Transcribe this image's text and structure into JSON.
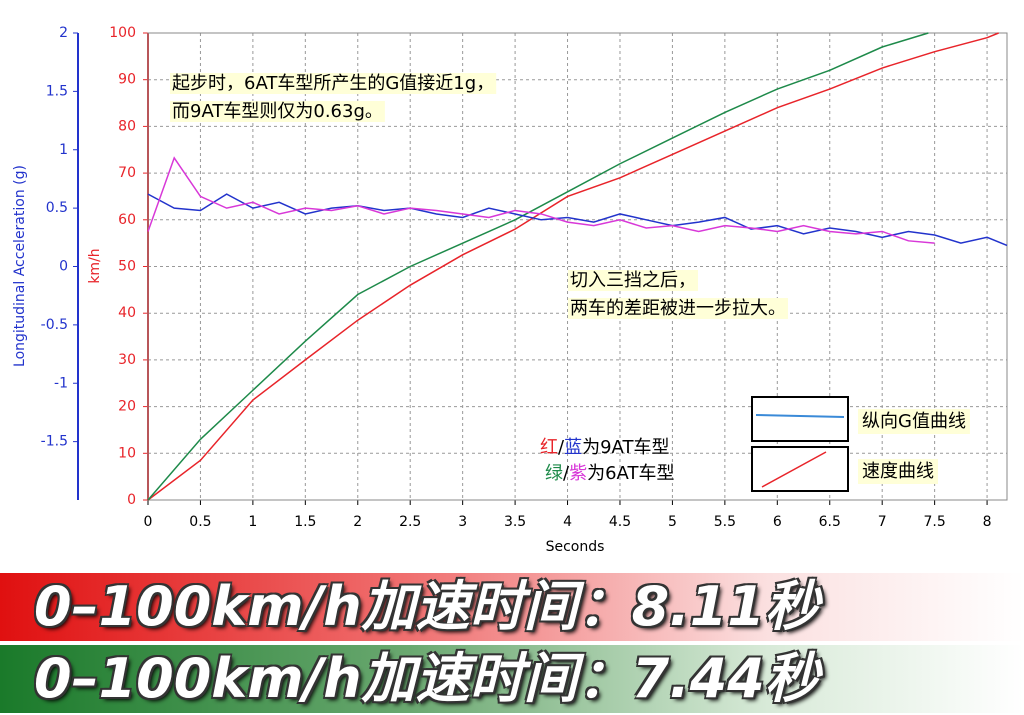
{
  "chart_data": {
    "type": "line",
    "xlabel": "Seconds",
    "ylabel": "km/h",
    "y2label": "Longitudinal Acceleration (g)",
    "xlim": [
      0,
      8.19
    ],
    "xticks": [
      0,
      0.5,
      1,
      1.5,
      2,
      2.5,
      3,
      3.5,
      4,
      4.5,
      5,
      5.5,
      6,
      6.5,
      7,
      7.5,
      8
    ],
    "ylim": [
      0,
      100
    ],
    "yticks": [
      0,
      10,
      20,
      30,
      40,
      50,
      60,
      70,
      80,
      90,
      100
    ],
    "y2lim": [
      -2,
      2
    ],
    "y2ticks": [
      -1.5,
      -1,
      -0.5,
      0,
      0.5,
      1,
      1.5,
      2
    ],
    "grid": true,
    "series": [
      {
        "color": "#e8242a",
        "x": [
          0,
          0.5,
          1,
          1.5,
          2,
          2.5,
          3,
          3.5,
          4,
          4.5,
          5,
          5.5,
          6,
          6.5,
          7,
          7.5,
          8,
          8.11
        ],
        "values": [
          0,
          8.5,
          21.4,
          30,
          38.5,
          46,
          52.5,
          58,
          65,
          69,
          74,
          79,
          84,
          88,
          92.5,
          96,
          99,
          100
        ]
      },
      {
        "color": "#1e8a4a",
        "x": [
          0,
          0.5,
          1,
          1.5,
          2,
          2.5,
          3,
          3.5,
          4,
          4.5,
          5,
          5.5,
          6,
          6.5,
          7,
          7.44
        ],
        "values": [
          0,
          13,
          23.5,
          34,
          44,
          50,
          55,
          60,
          66,
          72,
          77.5,
          83,
          88,
          92,
          97,
          100
        ]
      },
      {
        "color": "#2233cc",
        "axis": "y2",
        "x": [
          0,
          0.25,
          0.5,
          0.75,
          1,
          1.25,
          1.5,
          1.75,
          2,
          2.25,
          2.5,
          2.75,
          3,
          3.25,
          3.5,
          3.75,
          4,
          4.25,
          4.5,
          4.75,
          5,
          5.25,
          5.5,
          5.75,
          6,
          6.25,
          6.5,
          6.75,
          7,
          7.25,
          7.5,
          7.75,
          8,
          8.19
        ],
        "values": [
          0.62,
          0.5,
          0.48,
          0.62,
          0.5,
          0.55,
          0.45,
          0.5,
          0.52,
          0.48,
          0.5,
          0.45,
          0.42,
          0.5,
          0.45,
          0.4,
          0.42,
          0.38,
          0.45,
          0.4,
          0.35,
          0.38,
          0.42,
          0.32,
          0.35,
          0.28,
          0.33,
          0.3,
          0.25,
          0.3,
          0.27,
          0.2,
          0.25,
          0.18
        ]
      },
      {
        "color": "#d838d8",
        "axis": "y2",
        "x": [
          0,
          0.25,
          0.5,
          0.75,
          1,
          1.25,
          1.5,
          1.75,
          2,
          2.25,
          2.5,
          2.75,
          3,
          3.25,
          3.5,
          3.75,
          4,
          4.25,
          4.5,
          4.75,
          5,
          5.25,
          5.5,
          5.75,
          6,
          6.25,
          6.5,
          6.75,
          7,
          7.25,
          7.5
        ],
        "values": [
          0.3,
          0.93,
          0.6,
          0.5,
          0.55,
          0.45,
          0.5,
          0.48,
          0.52,
          0.45,
          0.5,
          0.48,
          0.45,
          0.42,
          0.48,
          0.45,
          0.38,
          0.35,
          0.4,
          0.33,
          0.35,
          0.3,
          0.35,
          0.33,
          0.3,
          0.35,
          0.3,
          0.28,
          0.3,
          0.22,
          0.2
        ]
      }
    ],
    "annotations": [
      "起步时，6AT车型所产生的G值接近1g，",
      "而9AT车型则仅为0.63g。",
      "切入三挡之后，",
      "两车的差距被进一步拉大。"
    ],
    "series_key": [
      [
        "红",
        "/",
        "蓝",
        "为9AT车型"
      ],
      [
        "绿",
        "/",
        "紫",
        "为6AT车型"
      ]
    ],
    "legend": [
      {
        "label": "纵向G值曲线",
        "color": "#3a8ad8"
      },
      {
        "label": "速度曲线",
        "color": "#e8242a"
      }
    ],
    "banners": [
      "0–100km/h加速时间：8.11秒",
      "0–100km/h加速时间：7.44秒"
    ]
  }
}
